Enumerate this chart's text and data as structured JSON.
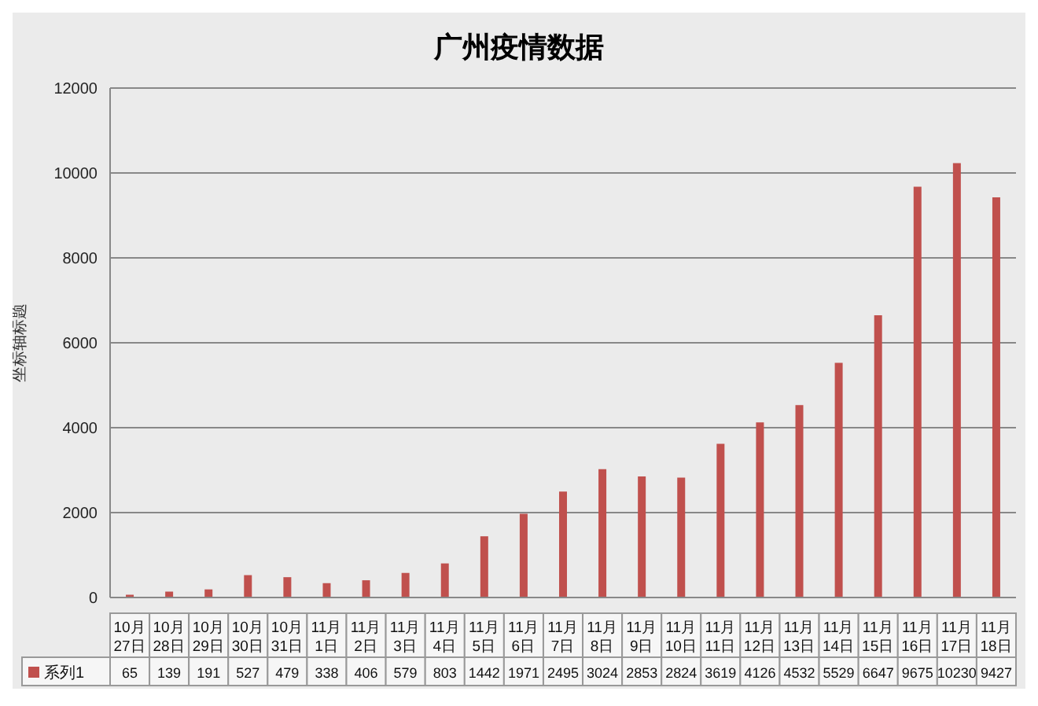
{
  "chart_data": {
    "type": "bar",
    "title": "广州疫情数据",
    "ylabel": "坐标轴标题",
    "categories": [
      "10月27日",
      "10月28日",
      "10月29日",
      "10月30日",
      "10月31日",
      "11月1日",
      "11月2日",
      "11月3日",
      "11月4日",
      "11月5日",
      "11月6日",
      "11月7日",
      "11月8日",
      "11月9日",
      "11月10日",
      "11月11日",
      "11月12日",
      "11月13日",
      "11月14日",
      "11月15日",
      "11月16日",
      "11月17日",
      "11月18日"
    ],
    "series": [
      {
        "name": "系列1",
        "color": "#c0504d",
        "values": [
          65,
          139,
          191,
          527,
          479,
          338,
          406,
          579,
          803,
          1442,
          1971,
          2495,
          3024,
          2853,
          2824,
          3619,
          4126,
          4532,
          5529,
          6647,
          9675,
          10230,
          9427
        ]
      }
    ],
    "ylim": [
      0,
      12000
    ],
    "yticks": [
      0,
      2000,
      4000,
      6000,
      8000,
      10000,
      12000
    ],
    "grid": "y",
    "legend": "bottom left",
    "data_labels": true
  }
}
